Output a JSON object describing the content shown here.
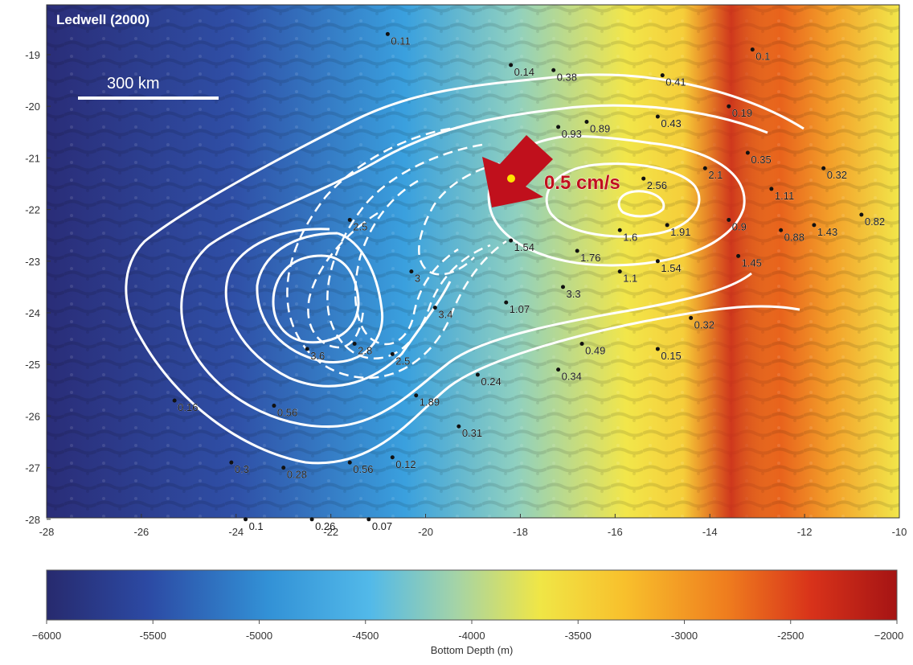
{
  "map": {
    "title": "Ledwell (2000)",
    "scale_bar_label": "300 km",
    "arrow_label": "0.5 cm/s",
    "x_ticks": [
      "-28",
      "-26",
      "-24",
      "-22",
      "-20",
      "-18",
      "-16",
      "-14",
      "-12",
      "-10"
    ],
    "y_ticks": [
      "-19",
      "-20",
      "-21",
      "-22",
      "-23",
      "-24",
      "-25",
      "-26",
      "-27",
      "-28"
    ],
    "colors": {
      "arrow": "#c0101c",
      "marker": "#ffe400",
      "contour": "#ffffff",
      "label_text": "#c0101c"
    }
  },
  "stations": [
    {
      "lon": -20.8,
      "lat": -18.6,
      "value": "0.11"
    },
    {
      "lon": -18.2,
      "lat": -19.2,
      "value": "0.14"
    },
    {
      "lon": -17.3,
      "lat": -19.3,
      "value": "0.38"
    },
    {
      "lon": -15.0,
      "lat": -19.4,
      "value": "0.41"
    },
    {
      "lon": -13.1,
      "lat": -18.9,
      "value": "0.1"
    },
    {
      "lon": -13.6,
      "lat": -20.0,
      "value": "0.19"
    },
    {
      "lon": -17.2,
      "lat": -20.4,
      "value": "0.93"
    },
    {
      "lon": -16.6,
      "lat": -20.3,
      "value": "0.89"
    },
    {
      "lon": -15.1,
      "lat": -20.2,
      "value": "0.43"
    },
    {
      "lon": -13.2,
      "lat": -20.9,
      "value": "0.35"
    },
    {
      "lon": -15.4,
      "lat": -21.4,
      "value": "2.56"
    },
    {
      "lon": -14.1,
      "lat": -21.2,
      "value": "2.1"
    },
    {
      "lon": -11.6,
      "lat": -21.2,
      "value": "0.32"
    },
    {
      "lon": -12.7,
      "lat": -21.6,
      "value": "1.11"
    },
    {
      "lon": -13.6,
      "lat": -22.2,
      "value": "0.9"
    },
    {
      "lon": -10.8,
      "lat": -22.1,
      "value": "0.82"
    },
    {
      "lon": -15.9,
      "lat": -22.4,
      "value": "1.6"
    },
    {
      "lon": -14.9,
      "lat": -22.3,
      "value": "1.91"
    },
    {
      "lon": -12.5,
      "lat": -22.4,
      "value": "0.88"
    },
    {
      "lon": -11.8,
      "lat": -22.3,
      "value": "1.43"
    },
    {
      "lon": -18.2,
      "lat": -22.6,
      "value": "1.54"
    },
    {
      "lon": -16.8,
      "lat": -22.8,
      "value": "1.76"
    },
    {
      "lon": -15.1,
      "lat": -23.0,
      "value": "1.54"
    },
    {
      "lon": -13.4,
      "lat": -22.9,
      "value": "1.45"
    },
    {
      "lon": -15.9,
      "lat": -23.2,
      "value": "1.1"
    },
    {
      "lon": -21.6,
      "lat": -22.2,
      "value": "2.5"
    },
    {
      "lon": -20.3,
      "lat": -23.2,
      "value": "3"
    },
    {
      "lon": -17.1,
      "lat": -23.5,
      "value": "3.3"
    },
    {
      "lon": -18.3,
      "lat": -23.8,
      "value": "1.07"
    },
    {
      "lon": -19.8,
      "lat": -23.9,
      "value": "3.4"
    },
    {
      "lon": -14.4,
      "lat": -24.1,
      "value": "0.32"
    },
    {
      "lon": -22.5,
      "lat": -24.7,
      "value": "3.6"
    },
    {
      "lon": -21.5,
      "lat": -24.6,
      "value": "2.8"
    },
    {
      "lon": -20.7,
      "lat": -24.8,
      "value": "2.5"
    },
    {
      "lon": -16.7,
      "lat": -24.6,
      "value": "0.49"
    },
    {
      "lon": -15.1,
      "lat": -24.7,
      "value": "0.15"
    },
    {
      "lon": -18.9,
      "lat": -25.2,
      "value": "0.24"
    },
    {
      "lon": -17.2,
      "lat": -25.1,
      "value": "0.34"
    },
    {
      "lon": -20.2,
      "lat": -25.6,
      "value": "1.89"
    },
    {
      "lon": -23.2,
      "lat": -25.8,
      "value": "0.56"
    },
    {
      "lon": -19.3,
      "lat": -26.2,
      "value": "0.31"
    },
    {
      "lon": -25.3,
      "lat": -25.7,
      "value": "0.16"
    },
    {
      "lon": -24.1,
      "lat": -26.9,
      "value": "0.3"
    },
    {
      "lon": -23.0,
      "lat": -27.0,
      "value": "0.28"
    },
    {
      "lon": -21.6,
      "lat": -26.9,
      "value": "0.56"
    },
    {
      "lon": -20.7,
      "lat": -26.8,
      "value": "0.12"
    },
    {
      "lon": -23.8,
      "lat": -28.0,
      "value": "0.1"
    },
    {
      "lon": -22.4,
      "lat": -28.0,
      "value": "0.26"
    },
    {
      "lon": -21.2,
      "lat": -28.0,
      "value": "0.07"
    }
  ],
  "colorbar": {
    "axis_label": "Bottom Depth (m)",
    "ticks": [
      "−6000",
      "-5500",
      "-5000",
      "-4500",
      "-4000",
      "-3500",
      "-3000",
      "-2500",
      "−2000"
    ],
    "gradient": [
      "#272a6e",
      "#2c4aa4",
      "#3291d6",
      "#52b9e9",
      "#a3d3a8",
      "#f0e646",
      "#f8c02c",
      "#ef7d1e",
      "#d8321a",
      "#a51414"
    ]
  }
}
